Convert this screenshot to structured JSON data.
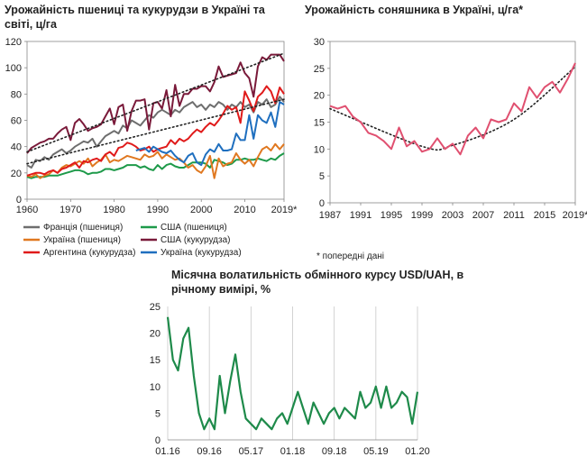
{
  "titles": {
    "wheat_corn": "Урожайність пшениці та кукурудзи в Україні та світі, ц/га",
    "sunflower": "Урожайність соняшника в Україні, ц/га*",
    "fx": "Місячна волатильність обмінного курсу USD/UAH, в річному вимірі, %"
  },
  "note": "* попередні дані",
  "chart_data": [
    {
      "id": "wheat_corn",
      "type": "line",
      "title": "Урожайність пшениці та кукурудзи в Україні та світі, ц/га",
      "xlim": [
        1960,
        2019
      ],
      "ylim": [
        0,
        120
      ],
      "x_ticks": [
        "1960",
        "1970",
        "1980",
        "1990",
        "2000",
        "2010",
        "2019*"
      ],
      "x_tick_values": [
        1960,
        1970,
        1980,
        1990,
        2000,
        2010,
        2019
      ],
      "y_ticks": [
        0,
        20,
        40,
        60,
        80,
        100,
        120
      ],
      "legend_position": "bottom",
      "series": [
        {
          "name": "Франція (пшениця)",
          "color": "#6e6e6e",
          "start": 1960,
          "values": [
            26,
            24,
            30,
            29,
            32,
            30,
            34,
            36,
            38,
            35,
            37,
            40,
            42,
            44,
            43,
            46,
            40,
            44,
            48,
            50,
            52,
            50,
            56,
            54,
            60,
            58,
            56,
            60,
            64,
            62,
            66,
            68,
            66,
            64,
            68,
            66,
            70,
            72,
            74,
            70,
            72,
            68,
            72,
            70,
            74,
            72,
            68,
            72,
            70,
            74,
            70,
            72,
            66,
            74,
            72,
            76,
            70,
            72,
            78,
            74
          ]
        },
        {
          "name": "США (пшениця)",
          "color": "#1e9a4a",
          "start": 1960,
          "values": [
            17,
            16,
            17,
            17,
            17,
            18,
            18,
            18,
            19,
            20,
            21,
            22,
            22,
            21,
            19,
            20,
            20,
            21,
            23,
            23,
            22,
            23,
            24,
            26,
            26,
            26,
            24,
            25,
            23,
            22,
            26,
            23,
            26,
            27,
            25,
            24,
            24,
            26,
            28,
            28,
            28,
            27,
            24,
            30,
            29,
            28,
            26,
            27,
            30,
            30,
            31,
            30,
            30,
            31,
            30,
            29,
            31,
            30,
            33,
            35
          ]
        },
        {
          "name": "Україна (пшениця)",
          "color": "#e07820",
          "start": 1960,
          "values": [
            18,
            17,
            19,
            16,
            18,
            19,
            22,
            20,
            24,
            26,
            25,
            27,
            29,
            27,
            31,
            25,
            28,
            30,
            34,
            28,
            30,
            29,
            31,
            33,
            32,
            31,
            30,
            34,
            32,
            33,
            36,
            31,
            34,
            32,
            30,
            31,
            28,
            24,
            26,
            22,
            20,
            25,
            33,
            16,
            31,
            25,
            27,
            28,
            35,
            30,
            27,
            30,
            25,
            32,
            38,
            40,
            37,
            42,
            38,
            42
          ]
        },
        {
          "name": "США (кукурудза)",
          "color": "#7a1a3a",
          "start": 1960,
          "values": [
            35,
            39,
            41,
            43,
            44,
            46,
            46,
            50,
            53,
            55,
            45,
            58,
            61,
            57,
            52,
            54,
            55,
            57,
            63,
            69,
            57,
            70,
            72,
            52,
            67,
            75,
            75,
            76,
            53,
            73,
            74,
            69,
            83,
            63,
            87,
            71,
            80,
            80,
            84,
            84,
            86,
            86,
            82,
            89,
            101,
            93,
            94,
            95,
            96,
            104,
            96,
            92,
            78,
            101,
            108,
            106,
            110,
            110,
            110,
            105
          ]
        },
        {
          "name": "Аргентина (кукурудза)",
          "color": "#e01a1a",
          "start": 1960,
          "values": [
            18,
            19,
            20,
            20,
            19,
            21,
            22,
            20,
            23,
            24,
            26,
            28,
            24,
            29,
            28,
            30,
            31,
            29,
            34,
            36,
            33,
            39,
            40,
            43,
            42,
            40,
            37,
            38,
            40,
            36,
            38,
            39,
            40,
            45,
            42,
            46,
            44,
            46,
            50,
            53,
            51,
            55,
            58,
            56,
            60,
            65,
            71,
            68,
            70,
            58,
            82,
            75,
            67,
            78,
            81,
            86,
            82,
            73,
            85,
            80
          ]
        },
        {
          "name": "Україна (кукурудза)",
          "color": "#1f6fbf",
          "start": 1985,
          "values": [
            37,
            38,
            39,
            36,
            40,
            38,
            36,
            35,
            37,
            33,
            30,
            28,
            33,
            35,
            28,
            26,
            34,
            38,
            36,
            42,
            37,
            37,
            38,
            50,
            45,
            45,
            64,
            46,
            64,
            60,
            58,
            66,
            55,
            74,
            72
          ]
        }
      ],
      "trendlines": [
        {
          "of": "Франція (пшениця)",
          "from": [
            1960,
            27
          ],
          "to": [
            2019,
            76
          ]
        },
        {
          "of": "США (кукурудза)",
          "from": [
            1960,
            36
          ],
          "to": [
            2019,
            111
          ]
        }
      ]
    },
    {
      "id": "sunflower",
      "type": "line",
      "title": "Урожайність соняшника в Україні, ц/га*",
      "xlim": [
        1987,
        2019
      ],
      "ylim": [
        0,
        30
      ],
      "x_ticks": [
        "1987",
        "1991",
        "1995",
        "1999",
        "2003",
        "2007",
        "2011",
        "2015",
        "2019*"
      ],
      "x_tick_values": [
        1987,
        1991,
        1995,
        1999,
        2003,
        2007,
        2011,
        2015,
        2019
      ],
      "y_ticks": [
        0,
        5,
        10,
        15,
        20,
        25,
        30
      ],
      "series": [
        {
          "color": "#e05070",
          "start": 1987,
          "values": [
            18,
            17.5,
            18,
            16,
            15,
            13,
            12.5,
            11.5,
            10,
            14,
            10.5,
            11.5,
            9.5,
            10,
            12,
            10,
            11,
            9,
            12.5,
            14,
            12,
            15.5,
            15,
            15.5,
            18.5,
            17,
            21.5,
            19.5,
            21.5,
            22.5,
            20.5,
            23,
            26
          ]
        }
      ],
      "trendlines": [
        {
          "type": "quadratic",
          "color": "#222222",
          "points": [
            [
              1987,
              17.5
            ],
            [
              1999,
              10.5
            ],
            [
              2003,
              10.7
            ],
            [
              2011,
              15.5
            ],
            [
              2019,
              25.3
            ]
          ]
        }
      ]
    },
    {
      "id": "fx",
      "type": "line",
      "title": "Місячна волатильність обмінного курсу USD/UAH, в річному вимірі, %",
      "ylim": [
        0,
        25
      ],
      "x_ticks": [
        "01.16",
        "09.16",
        "05.17",
        "01.18",
        "09.18",
        "05.19",
        "01.20"
      ],
      "y_ticks": [
        0,
        5,
        10,
        15,
        20,
        25
      ],
      "color": "#1e8a4a",
      "points": [
        [
          "01.16",
          23
        ],
        [
          "02.16",
          15
        ],
        [
          "03.16",
          13
        ],
        [
          "04.16",
          19
        ],
        [
          "05.16",
          21
        ],
        [
          "06.16",
          12
        ],
        [
          "07.16",
          5
        ],
        [
          "08.16",
          2
        ],
        [
          "09.16",
          4
        ],
        [
          "10.16",
          2
        ],
        [
          "11.16",
          12
        ],
        [
          "12.16",
          5
        ],
        [
          "01.17",
          11
        ],
        [
          "02.17",
          16
        ],
        [
          "03.17",
          9
        ],
        [
          "04.17",
          4
        ],
        [
          "05.17",
          3
        ],
        [
          "06.17",
          2
        ],
        [
          "07.17",
          4
        ],
        [
          "08.17",
          3
        ],
        [
          "09.17",
          2
        ],
        [
          "10.17",
          4
        ],
        [
          "11.17",
          5
        ],
        [
          "12.17",
          3
        ],
        [
          "01.18",
          6
        ],
        [
          "02.18",
          9
        ],
        [
          "03.18",
          6
        ],
        [
          "04.18",
          3
        ],
        [
          "05.18",
          7
        ],
        [
          "06.18",
          5
        ],
        [
          "07.18",
          3
        ],
        [
          "08.18",
          5
        ],
        [
          "09.18",
          6
        ],
        [
          "10.18",
          4
        ],
        [
          "11.18",
          6
        ],
        [
          "12.18",
          5
        ],
        [
          "01.19",
          4
        ],
        [
          "02.19",
          9
        ],
        [
          "03.19",
          6
        ],
        [
          "04.19",
          7
        ],
        [
          "05.19",
          10
        ],
        [
          "06.19",
          6
        ],
        [
          "07.19",
          10
        ],
        [
          "08.19",
          6
        ],
        [
          "09.19",
          7
        ],
        [
          "10.19",
          9
        ],
        [
          "11.19",
          8
        ],
        [
          "12.19",
          3
        ],
        [
          "01.20",
          9
        ]
      ]
    }
  ]
}
